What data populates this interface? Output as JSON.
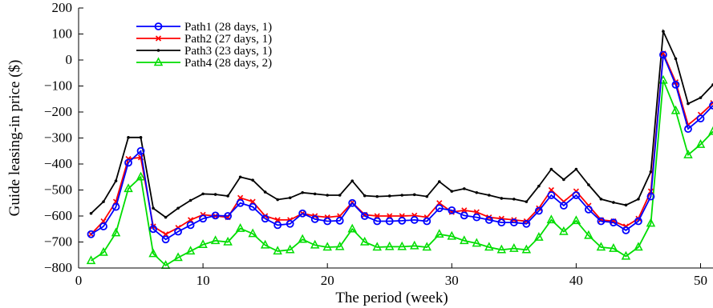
{
  "chart_data": {
    "type": "line",
    "title": "",
    "xlabel": "The period (week)",
    "ylabel": "Guide leasing-in price ($)",
    "xlim": [
      0,
      51
    ],
    "ylim": [
      -800,
      200
    ],
    "xticks": [
      0,
      10,
      20,
      30,
      40,
      50
    ],
    "yticks": [
      -800,
      -700,
      -600,
      -500,
      -400,
      -300,
      -200,
      -100,
      0,
      100,
      200
    ],
    "grid": false,
    "legend_position": "top-left",
    "x": [
      1,
      2,
      3,
      4,
      5,
      6,
      7,
      8,
      9,
      10,
      11,
      12,
      13,
      14,
      15,
      16,
      17,
      18,
      19,
      20,
      21,
      22,
      23,
      24,
      25,
      26,
      27,
      28,
      29,
      30,
      31,
      32,
      33,
      34,
      35,
      36,
      37,
      38,
      39,
      40,
      41,
      42,
      43,
      44,
      45,
      46,
      47,
      48,
      49,
      50,
      51
    ],
    "series": [
      {
        "name": "Path1 (28 days, 1)",
        "color": "#0000ff",
        "marker": "circle",
        "values": [
          -670,
          -640,
          -565,
          -395,
          -350,
          -650,
          -690,
          -660,
          -635,
          -610,
          -598,
          -600,
          -550,
          -565,
          -610,
          -635,
          -630,
          -590,
          -612,
          -620,
          -618,
          -550,
          -600,
          -620,
          -620,
          -618,
          -615,
          -620,
          -570,
          -578,
          -598,
          -605,
          -615,
          -625,
          -625,
          -630,
          -580,
          -520,
          -560,
          -520,
          -575,
          -620,
          -625,
          -655,
          -620,
          -525,
          20,
          -95,
          -265,
          -225,
          -175
        ]
      },
      {
        "name": "Path2 (27 days, 1)",
        "color": "#ff0000",
        "marker": "x",
        "values": [
          -670,
          -620,
          -545,
          -380,
          -375,
          -640,
          -670,
          -645,
          -615,
          -595,
          -600,
          -605,
          -530,
          -545,
          -600,
          -615,
          -615,
          -590,
          -600,
          -605,
          -600,
          -548,
          -595,
          -600,
          -600,
          -600,
          -598,
          -605,
          -550,
          -585,
          -578,
          -585,
          -605,
          -610,
          -615,
          -620,
          -570,
          -500,
          -545,
          -505,
          -560,
          -615,
          -620,
          -640,
          -610,
          -505,
          25,
          -85,
          -250,
          -210,
          -165
        ]
      },
      {
        "name": "Path3 (23 days, 1)",
        "color": "#000000",
        "marker": "dot",
        "values": [
          -590,
          -545,
          -465,
          -298,
          -298,
          -570,
          -605,
          -570,
          -540,
          -515,
          -517,
          -523,
          -450,
          -462,
          -508,
          -537,
          -530,
          -510,
          -515,
          -520,
          -520,
          -465,
          -522,
          -525,
          -523,
          -520,
          -518,
          -525,
          -468,
          -505,
          -495,
          -510,
          -520,
          -532,
          -535,
          -545,
          -485,
          -420,
          -460,
          -420,
          -480,
          -535,
          -548,
          -558,
          -535,
          -430,
          110,
          5,
          -168,
          -145,
          -95
        ]
      },
      {
        "name": "Path4 (28 days, 2)",
        "color": "#00dd00",
        "marker": "triangle",
        "values": [
          -772,
          -740,
          -665,
          -495,
          -450,
          -745,
          -790,
          -760,
          -735,
          -710,
          -695,
          -700,
          -648,
          -668,
          -712,
          -735,
          -730,
          -690,
          -712,
          -720,
          -718,
          -650,
          -700,
          -720,
          -718,
          -718,
          -715,
          -720,
          -670,
          -678,
          -695,
          -705,
          -720,
          -730,
          -725,
          -730,
          -682,
          -615,
          -660,
          -618,
          -675,
          -720,
          -725,
          -755,
          -720,
          -628,
          -78,
          -195,
          -365,
          -325,
          -275
        ]
      }
    ]
  }
}
